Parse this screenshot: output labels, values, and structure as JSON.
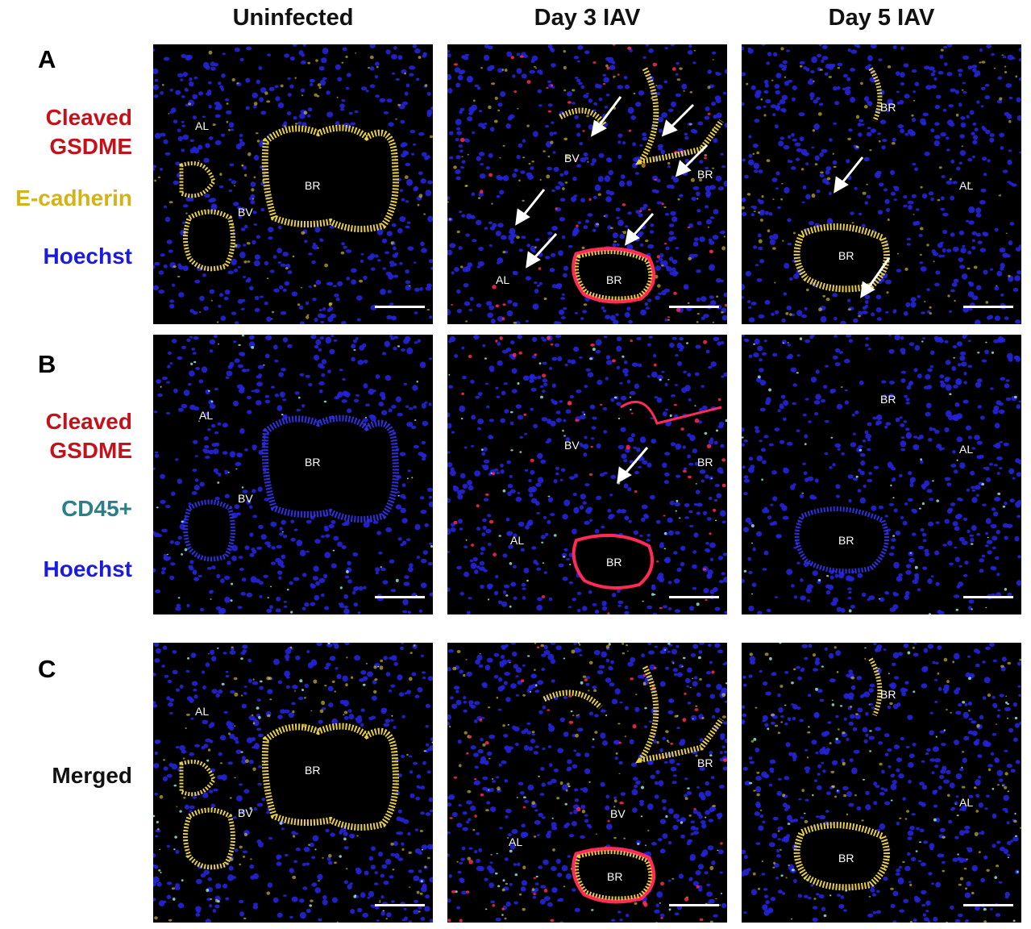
{
  "columns": [
    "Uninfected",
    "Day 3 IAV",
    "Day 5 IAV"
  ],
  "rows": [
    {
      "letter": "A",
      "stains": [
        {
          "text": "Cleaved",
          "color": "#c4121b"
        },
        {
          "text": "GSDME",
          "color": "#c4121b"
        },
        {
          "text": "E-cadherin",
          "color": "#d4b21a"
        },
        {
          "text": "Hoechst",
          "color": "#1a1ae0"
        }
      ]
    },
    {
      "letter": "B",
      "stains": [
        {
          "text": "Cleaved",
          "color": "#c4121b"
        },
        {
          "text": "GSDME",
          "color": "#c4121b"
        },
        {
          "text": "CD45+",
          "color": "#2b7f86"
        },
        {
          "text": "Hoechst",
          "color": "#1a1ae0"
        }
      ]
    },
    {
      "letter": "C",
      "stains": [
        {
          "text": "Merged",
          "color": "#111111"
        }
      ]
    }
  ],
  "tile_labels": {
    "br": "BR",
    "bv": "BV",
    "al": "AL"
  },
  "colors": {
    "nuclei": "#2424d8",
    "epithelium": "#e8d040",
    "gsdme": "#ff2a55",
    "cd45": "#9ef0e6",
    "arrow": "#ffffff"
  }
}
